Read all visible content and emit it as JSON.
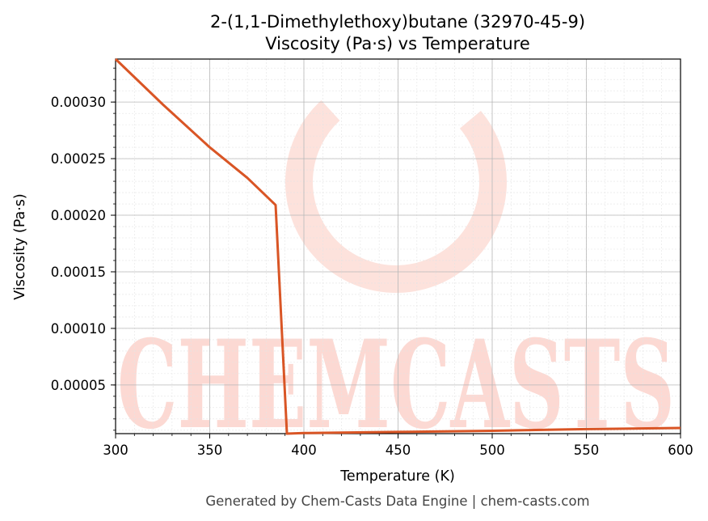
{
  "chart_data": {
    "type": "line",
    "title_line1": "2-(1,1-Dimethylethoxy)butane (32970-45-9)",
    "title_line2": "Viscosity (Pa·s) vs Temperature",
    "xlabel": "Temperature (K)",
    "ylabel": "Viscosity (Pa·s)",
    "xlim": [
      300,
      600
    ],
    "ylim": [
      7e-06,
      0.000338
    ],
    "x_ticks": [
      300,
      350,
      400,
      450,
      500,
      550,
      600
    ],
    "x_tick_labels": [
      "300",
      "350",
      "400",
      "450",
      "500",
      "550",
      "600"
    ],
    "y_ticks": [
      5e-05,
      0.0001,
      0.00015,
      0.0002,
      0.00025,
      0.0003
    ],
    "y_tick_labels": [
      "0.00005",
      "0.00010",
      "0.00015",
      "0.00020",
      "0.00025",
      "0.00030"
    ],
    "grid": true,
    "line_color": "#d95525",
    "series": [
      {
        "x": [
          300,
          325,
          350,
          370,
          385,
          391,
          400,
          450,
          500,
          550,
          600
        ],
        "y": [
          0.000338,
          0.000298,
          0.00026,
          0.000233,
          0.000209,
          7e-06,
          7.5e-06,
          8.5e-06,
          9.5e-06,
          1.1e-05,
          1.2e-05
        ]
      }
    ]
  },
  "watermark": {
    "text": "CHEMCASTS",
    "color": "#fcd9d3"
  },
  "footer": "Generated by Chem-Casts Data Engine | chem-casts.com"
}
